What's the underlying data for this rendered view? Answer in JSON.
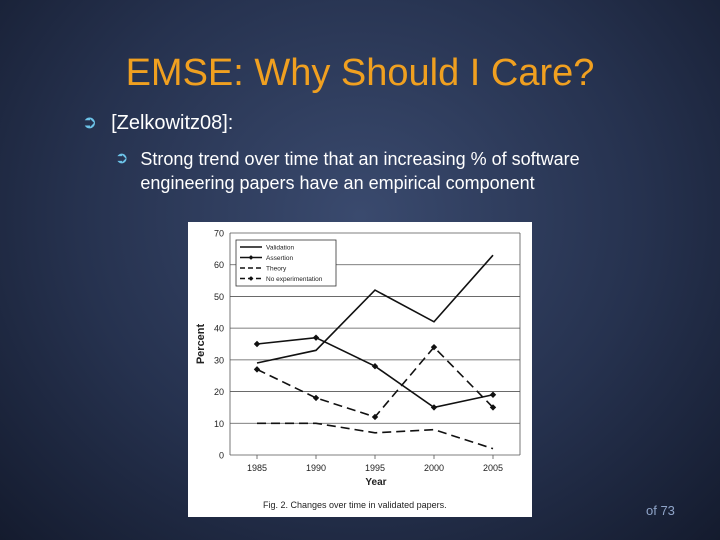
{
  "slide": {
    "title": "EMSE: Why Should I Care?",
    "bullet1": "[Zelkowitz08]:",
    "bullet2": "Strong trend over time that an increasing % of software engineering papers have an empirical component",
    "page_number": "of 73",
    "bullet_icon": "circled-arrow-icon",
    "colors": {
      "title": "#f0a020",
      "bullet_icon": "#6cc3e8",
      "background": "#26324f"
    }
  },
  "chart_data": {
    "type": "line",
    "x": [
      1985,
      1990,
      1995,
      2000,
      2005
    ],
    "ylabel": "Percent",
    "xlabel": "Year",
    "ylim": [
      0,
      70
    ],
    "yticks": [
      0,
      10,
      20,
      30,
      40,
      50,
      60,
      70
    ],
    "xticks": [
      "1985",
      "1990",
      "1995",
      "2000",
      "2005"
    ],
    "caption": "Fig. 2. Changes over time in validated papers.",
    "grid": true,
    "legend_position": "top-left",
    "series": [
      {
        "name": "Validation",
        "style": "solid",
        "marker": "none",
        "values": [
          29,
          33,
          52,
          42,
          63
        ]
      },
      {
        "name": "Assertion",
        "style": "solid",
        "marker": "diamond",
        "values": [
          35,
          37,
          28,
          15,
          19
        ]
      },
      {
        "name": "Theory",
        "style": "dashed",
        "marker": "none",
        "values": [
          10,
          10,
          7,
          8,
          2
        ]
      },
      {
        "name": "No experimentation",
        "style": "dashed",
        "marker": "diamond",
        "values": [
          27,
          18,
          12,
          34,
          15
        ]
      }
    ]
  }
}
